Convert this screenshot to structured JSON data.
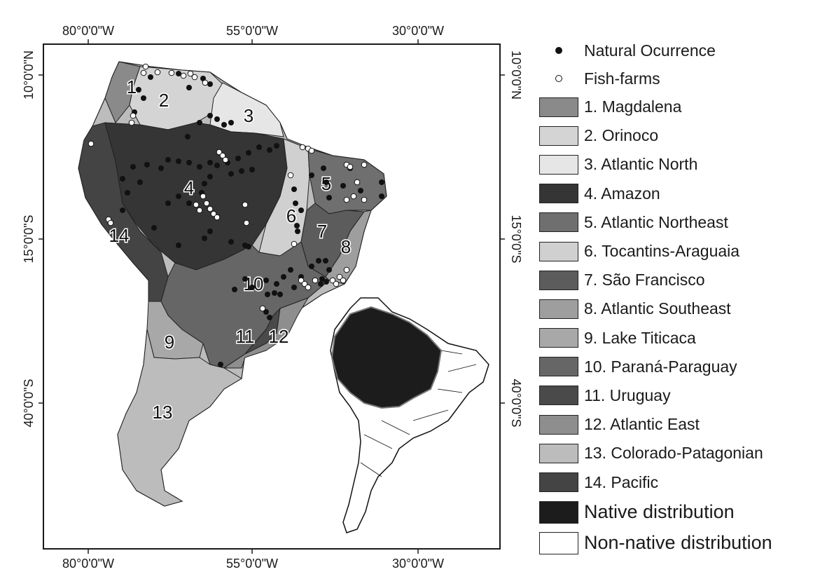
{
  "map": {
    "lon_labels": [
      "80°0'0\"W",
      "55°0'0\"W",
      "30°0'0\"W"
    ],
    "lat_labels": [
      "10°0'0\"N",
      "15°0'0\"S",
      "40°0'0\"S"
    ],
    "region_numbers": [
      "1",
      "2",
      "3",
      "4",
      "5",
      "6",
      "7",
      "8",
      "9",
      "10",
      "11",
      "12",
      "13",
      "14"
    ]
  },
  "legend": {
    "points": [
      {
        "label": "Natural Ocurrence",
        "fill": "#111111",
        "stroke": "#111111",
        "icon": "filled-circle-icon"
      },
      {
        "label": "Fish-farms",
        "fill": "#ffffff",
        "stroke": "#111111",
        "icon": "open-circle-icon"
      }
    ],
    "regions": [
      {
        "label": "1. Magdalena",
        "color": "#8a8a8a"
      },
      {
        "label": "2. Orinoco",
        "color": "#d4d4d4"
      },
      {
        "label": "3. Atlantic North",
        "color": "#e6e6e6"
      },
      {
        "label": "4. Amazon",
        "color": "#353535"
      },
      {
        "label": "5. Atlantic Northeast",
        "color": "#6f6f6f"
      },
      {
        "label": "6. Tocantins-Araguaia",
        "color": "#d0d0d0"
      },
      {
        "label": "7. São Francisco",
        "color": "#5c5c5c"
      },
      {
        "label": "8. Atlantic Southeast",
        "color": "#9e9e9e"
      },
      {
        "label": "9. Lake Titicaca",
        "color": "#a8a8a8"
      },
      {
        "label": "10. Paraná-Paraguay",
        "color": "#666666"
      },
      {
        "label": "11. Uruguay",
        "color": "#4a4a4a"
      },
      {
        "label": "12. Atlantic East",
        "color": "#8e8e8e"
      },
      {
        "label": "13. Colorado-Patagonian",
        "color": "#bcbcbc"
      },
      {
        "label": "14. Pacific",
        "color": "#444444"
      }
    ],
    "distribution": [
      {
        "label": "Native distribution",
        "color": "#1c1c1c"
      },
      {
        "label": "Non-native distribution",
        "color": "#ffffff"
      }
    ]
  }
}
